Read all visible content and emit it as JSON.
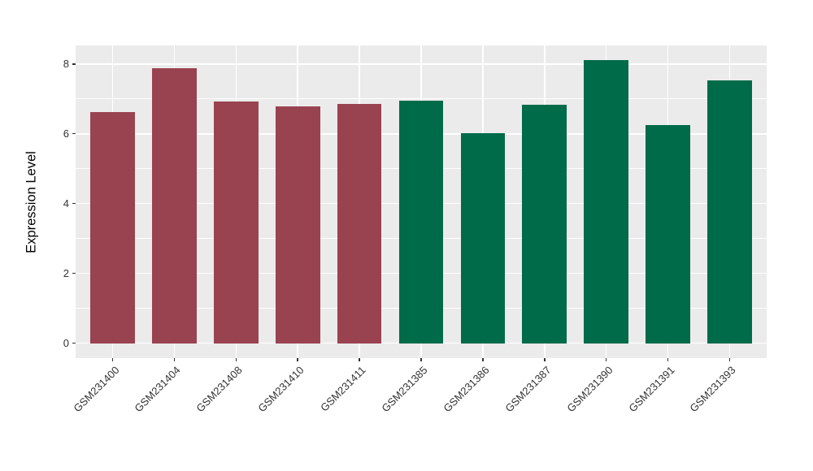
{
  "chart_data": {
    "type": "bar",
    "title": "",
    "xlabel": "",
    "ylabel": "Expression Level",
    "categories": [
      "GSM231400",
      "GSM231404",
      "GSM231408",
      "GSM231410",
      "GSM231411",
      "GSM231385",
      "GSM231386",
      "GSM231387",
      "GSM231390",
      "GSM231391",
      "GSM231393"
    ],
    "values": [
      6.62,
      7.88,
      6.92,
      6.78,
      6.85,
      6.94,
      6.02,
      6.82,
      8.1,
      6.24,
      7.52
    ],
    "bar_colors": [
      "#9A4350",
      "#9A4350",
      "#9A4350",
      "#9A4350",
      "#9A4350",
      "#006B49",
      "#006B49",
      "#006B49",
      "#006B49",
      "#006B49",
      "#006B49"
    ],
    "group_colors": {
      "maroon": "#9A4350",
      "green": "#006B49"
    },
    "y_ticks_major": [
      0,
      2,
      4,
      6,
      8
    ],
    "y_ticks_minor": [
      1,
      3,
      5,
      7
    ],
    "y_tick_labels": [
      "0",
      "2",
      "4",
      "6",
      "8"
    ],
    "y_domain": [
      -0.43,
      8.53
    ],
    "grid": true,
    "legend": "none",
    "panel_bg": "#EBEBEB",
    "grid_color": "#FFFFFF",
    "axis_text_color": "#333333",
    "axis_title_color": "#000000",
    "tick_mark_color": "#333333",
    "x_label_rotation_deg": -45,
    "x_pad_outer_units": 0.6,
    "bar_width_units": 0.72
  }
}
